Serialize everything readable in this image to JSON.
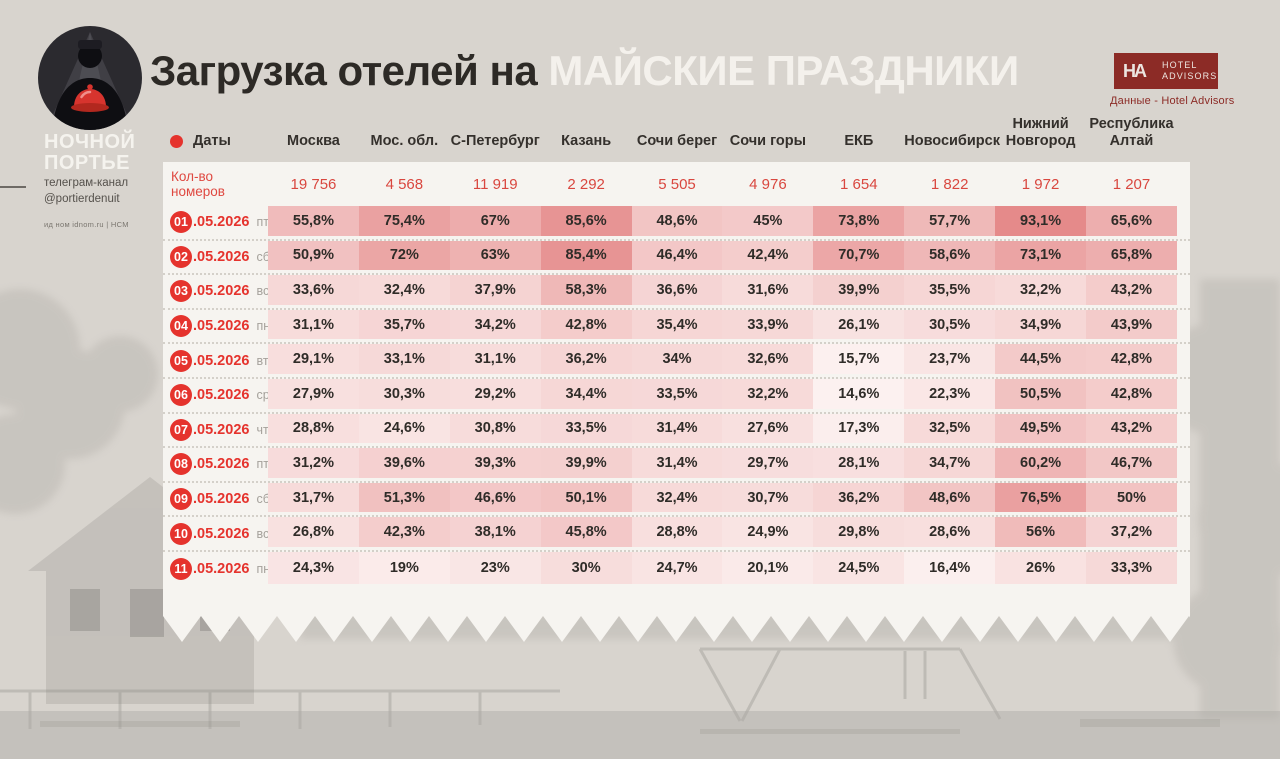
{
  "page": {
    "background": "#d8d4ce",
    "card_background": "#f6f4f0"
  },
  "brand": {
    "logo": "night-porter-emblem-with-red-bell",
    "name_line1": "НОЧНОЙ",
    "name_line2": "ПОРТЬЕ",
    "telegram_label": "телеграм-канал",
    "telegram_handle": "@portierdenuit",
    "footnote": "ид ном idnom.ru | НСМ"
  },
  "header": {
    "title_prefix": "Загрузка отелей на ",
    "title_highlight": "МАЙСКИЕ ПРАЗДНИКИ",
    "source_logo": {
      "abbr": "HA",
      "line1": "HOTEL",
      "line2": "ADVISORS"
    },
    "source_caption": "Данные - Hotel Advisors"
  },
  "table": {
    "date_col_header": "Даты",
    "rooms_row_label": "Кол-во номеров",
    "rooms_display": [
      "19 756",
      "4 568",
      "11 919",
      "2 292",
      "5 505",
      "4 976",
      "1 654",
      "1 822",
      "1 972",
      "1 207"
    ],
    "rows": [
      {
        "day": "01",
        "suffix": ".05.2026",
        "weekday": "пт"
      },
      {
        "day": "02",
        "suffix": ".05.2026",
        "weekday": "сб"
      },
      {
        "day": "03",
        "suffix": ".05.2026",
        "weekday": "вс"
      },
      {
        "day": "04",
        "suffix": ".05.2026",
        "weekday": "пн"
      },
      {
        "day": "05",
        "suffix": ".05.2026",
        "weekday": "вт"
      },
      {
        "day": "06",
        "suffix": ".05.2026",
        "weekday": "ср"
      },
      {
        "day": "07",
        "suffix": ".05.2026",
        "weekday": "чт"
      },
      {
        "day": "08",
        "suffix": ".05.2026",
        "weekday": "пт"
      },
      {
        "day": "09",
        "suffix": ".05.2026",
        "weekday": "сб"
      },
      {
        "day": "10",
        "suffix": ".05.2026",
        "weekday": "вс"
      },
      {
        "day": "11",
        "suffix": ".05.2026",
        "weekday": "пн"
      }
    ]
  },
  "chart_data": {
    "type": "heatmap",
    "title": "Загрузка отелей на МАЙСКИЕ ПРАЗДНИКИ",
    "unit": "%",
    "columns": [
      "Москва",
      "Мос. обл.",
      "С-Петербург",
      "Казань",
      "Сочи берег",
      "Сочи горы",
      "ЕКБ",
      "Новосибирск",
      "Нижний Новгород",
      "Республика Алтай"
    ],
    "rooms_per_city": [
      19756,
      4568,
      11919,
      2292,
      5505,
      4976,
      1654,
      1822,
      1972,
      1207
    ],
    "row_labels": [
      "01.05.2026 пт",
      "02.05.2026 сб",
      "03.05.2026 вс",
      "04.05.2026 пн",
      "05.05.2026 вт",
      "06.05.2026 ср",
      "07.05.2026 чт",
      "08.05.2026 пт",
      "09.05.2026 сб",
      "10.05.2026 вс",
      "11.05.2026 пн"
    ],
    "values": [
      [
        55.8,
        75.4,
        67,
        85.6,
        48.6,
        45,
        73.8,
        57.7,
        93.1,
        65.6
      ],
      [
        50.9,
        72,
        63,
        85.4,
        46.4,
        42.4,
        70.7,
        58.6,
        73.1,
        65.8
      ],
      [
        33.6,
        32.4,
        37.9,
        58.3,
        36.6,
        31.6,
        39.9,
        35.5,
        32.2,
        43.2
      ],
      [
        31.1,
        35.7,
        34.2,
        42.8,
        35.4,
        33.9,
        26.1,
        30.5,
        34.9,
        43.9
      ],
      [
        29.1,
        33.1,
        31.1,
        36.2,
        34,
        32.6,
        15.7,
        23.7,
        44.5,
        42.8
      ],
      [
        27.9,
        30.3,
        29.2,
        34.4,
        33.5,
        32.2,
        14.6,
        22.3,
        50.5,
        42.8
      ],
      [
        28.8,
        24.6,
        30.8,
        33.5,
        31.4,
        27.6,
        17.3,
        32.5,
        49.5,
        43.2
      ],
      [
        31.2,
        39.6,
        39.3,
        39.9,
        31.4,
        29.7,
        28.1,
        34.7,
        60.2,
        46.7
      ],
      [
        31.7,
        51.3,
        46.6,
        50.1,
        32.4,
        30.7,
        36.2,
        48.6,
        76.5,
        50
      ],
      [
        26.8,
        42.3,
        38.1,
        45.8,
        28.8,
        24.9,
        29.8,
        28.6,
        56,
        37.2
      ],
      [
        24.3,
        19,
        23,
        30,
        24.7,
        20.1,
        24.5,
        16.4,
        26,
        33.3
      ]
    ],
    "color_scale": {
      "low": "#fcf2f1",
      "high": "#e58a8a",
      "domain": [
        14,
        93.1
      ]
    },
    "accent_red": "#e5332d",
    "legend_position": "none",
    "grid": "dotted-row-separators"
  }
}
